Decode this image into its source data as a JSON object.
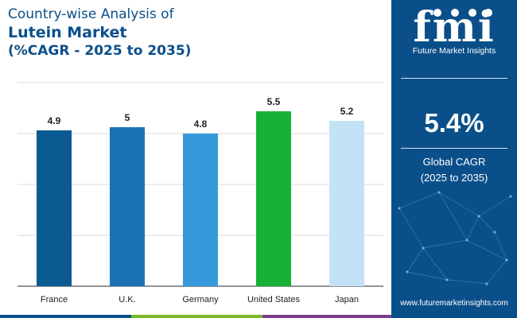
{
  "title": {
    "line1": "Country-wise Analysis of",
    "line2": "Lutein Market",
    "line3": "(%CAGR - 2025 to 2035)"
  },
  "chart_data": {
    "type": "bar",
    "categories": [
      "France",
      "U.K.",
      "Germany",
      "United States",
      "Japan"
    ],
    "values": [
      4.9,
      5,
      4.8,
      5.5,
      5.2
    ],
    "value_labels": [
      "4.9",
      "5",
      "4.8",
      "5.5",
      "5.2"
    ],
    "colors": [
      "#0b5a91",
      "#1a72b5",
      "#3599dc",
      "#16b036",
      "#c4e2f5"
    ],
    "ylim": [
      0,
      6.4
    ],
    "gridlines": [
      0,
      1.6,
      3.2,
      4.8,
      6.4
    ],
    "xlabel": "",
    "ylabel": "",
    "grid": true
  },
  "side_panel": {
    "logo_text": "fmi",
    "brand_name": "Future Market Insights",
    "cagr_value": "5.4%",
    "cagr_label_line1": "Global CAGR",
    "cagr_label_line2": "(2025 to 2035)",
    "website": "www.futuremarketinsights.com",
    "background_color": "#0b4f8a"
  },
  "bottom_bar_colors": [
    "#0b4f8a",
    "#78b928",
    "#7b3b8c",
    "#0b4f8a"
  ]
}
